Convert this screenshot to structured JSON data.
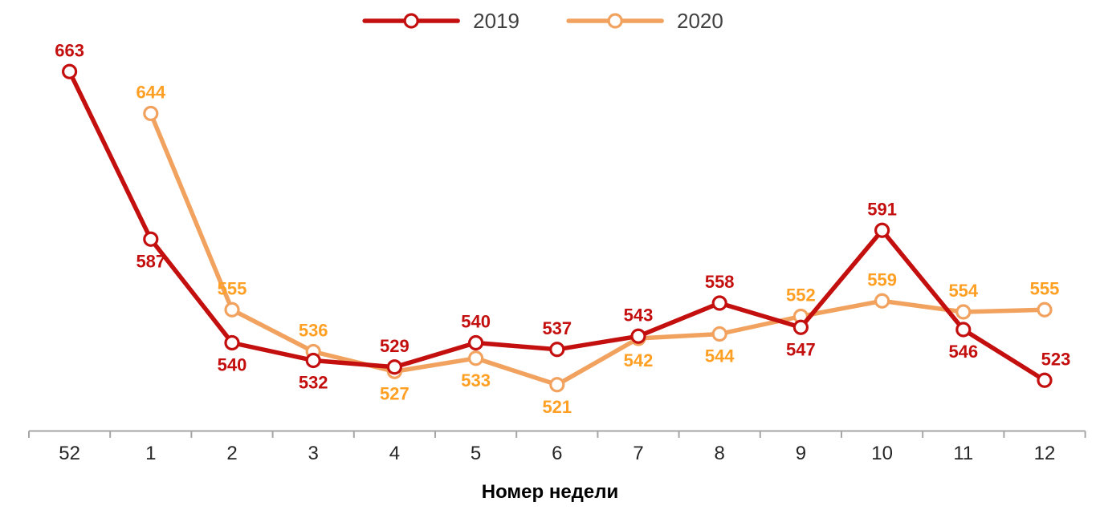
{
  "chart_data": {
    "type": "line",
    "title": "",
    "x_axis_title": "Номер недели",
    "categories": [
      "52",
      "1",
      "2",
      "3",
      "4",
      "5",
      "6",
      "7",
      "8",
      "9",
      "10",
      "11",
      "12"
    ],
    "grid": false,
    "legend_position": "top-center",
    "y_axis_visible": false,
    "ylim": [
      500,
      680
    ],
    "background_color": "#FFFFFF",
    "axis_line_color": "#A6A6A6",
    "tick_label_color": "#262626",
    "axis_title_color": "#000000",
    "legend_text_color": "#404040",
    "marker_style": "open-circle",
    "series": [
      {
        "name": "2019",
        "line_color": "#C40F0F",
        "label_color": "#C40F0F",
        "values": [
          663,
          587,
          540,
          532,
          529,
          540,
          537,
          543,
          558,
          547,
          591,
          546,
          523
        ],
        "label_positions": [
          "above",
          "below",
          "below",
          "below",
          "above",
          "above",
          "above",
          "above",
          "above",
          "below",
          "above",
          "below",
          "above"
        ],
        "label_dx_overrides": {
          "12": 14
        }
      },
      {
        "name": "2020",
        "line_color": "#F2A25F",
        "label_color": "#FFA024",
        "values": [
          null,
          644,
          555,
          536,
          527,
          533,
          521,
          542,
          544,
          552,
          559,
          554,
          555
        ],
        "label_positions": [
          null,
          "above",
          "above",
          "above",
          "below",
          "below",
          "below",
          "below",
          "below",
          "above",
          "above",
          "above",
          "above"
        ],
        "label_dx_overrides": {}
      }
    ]
  }
}
